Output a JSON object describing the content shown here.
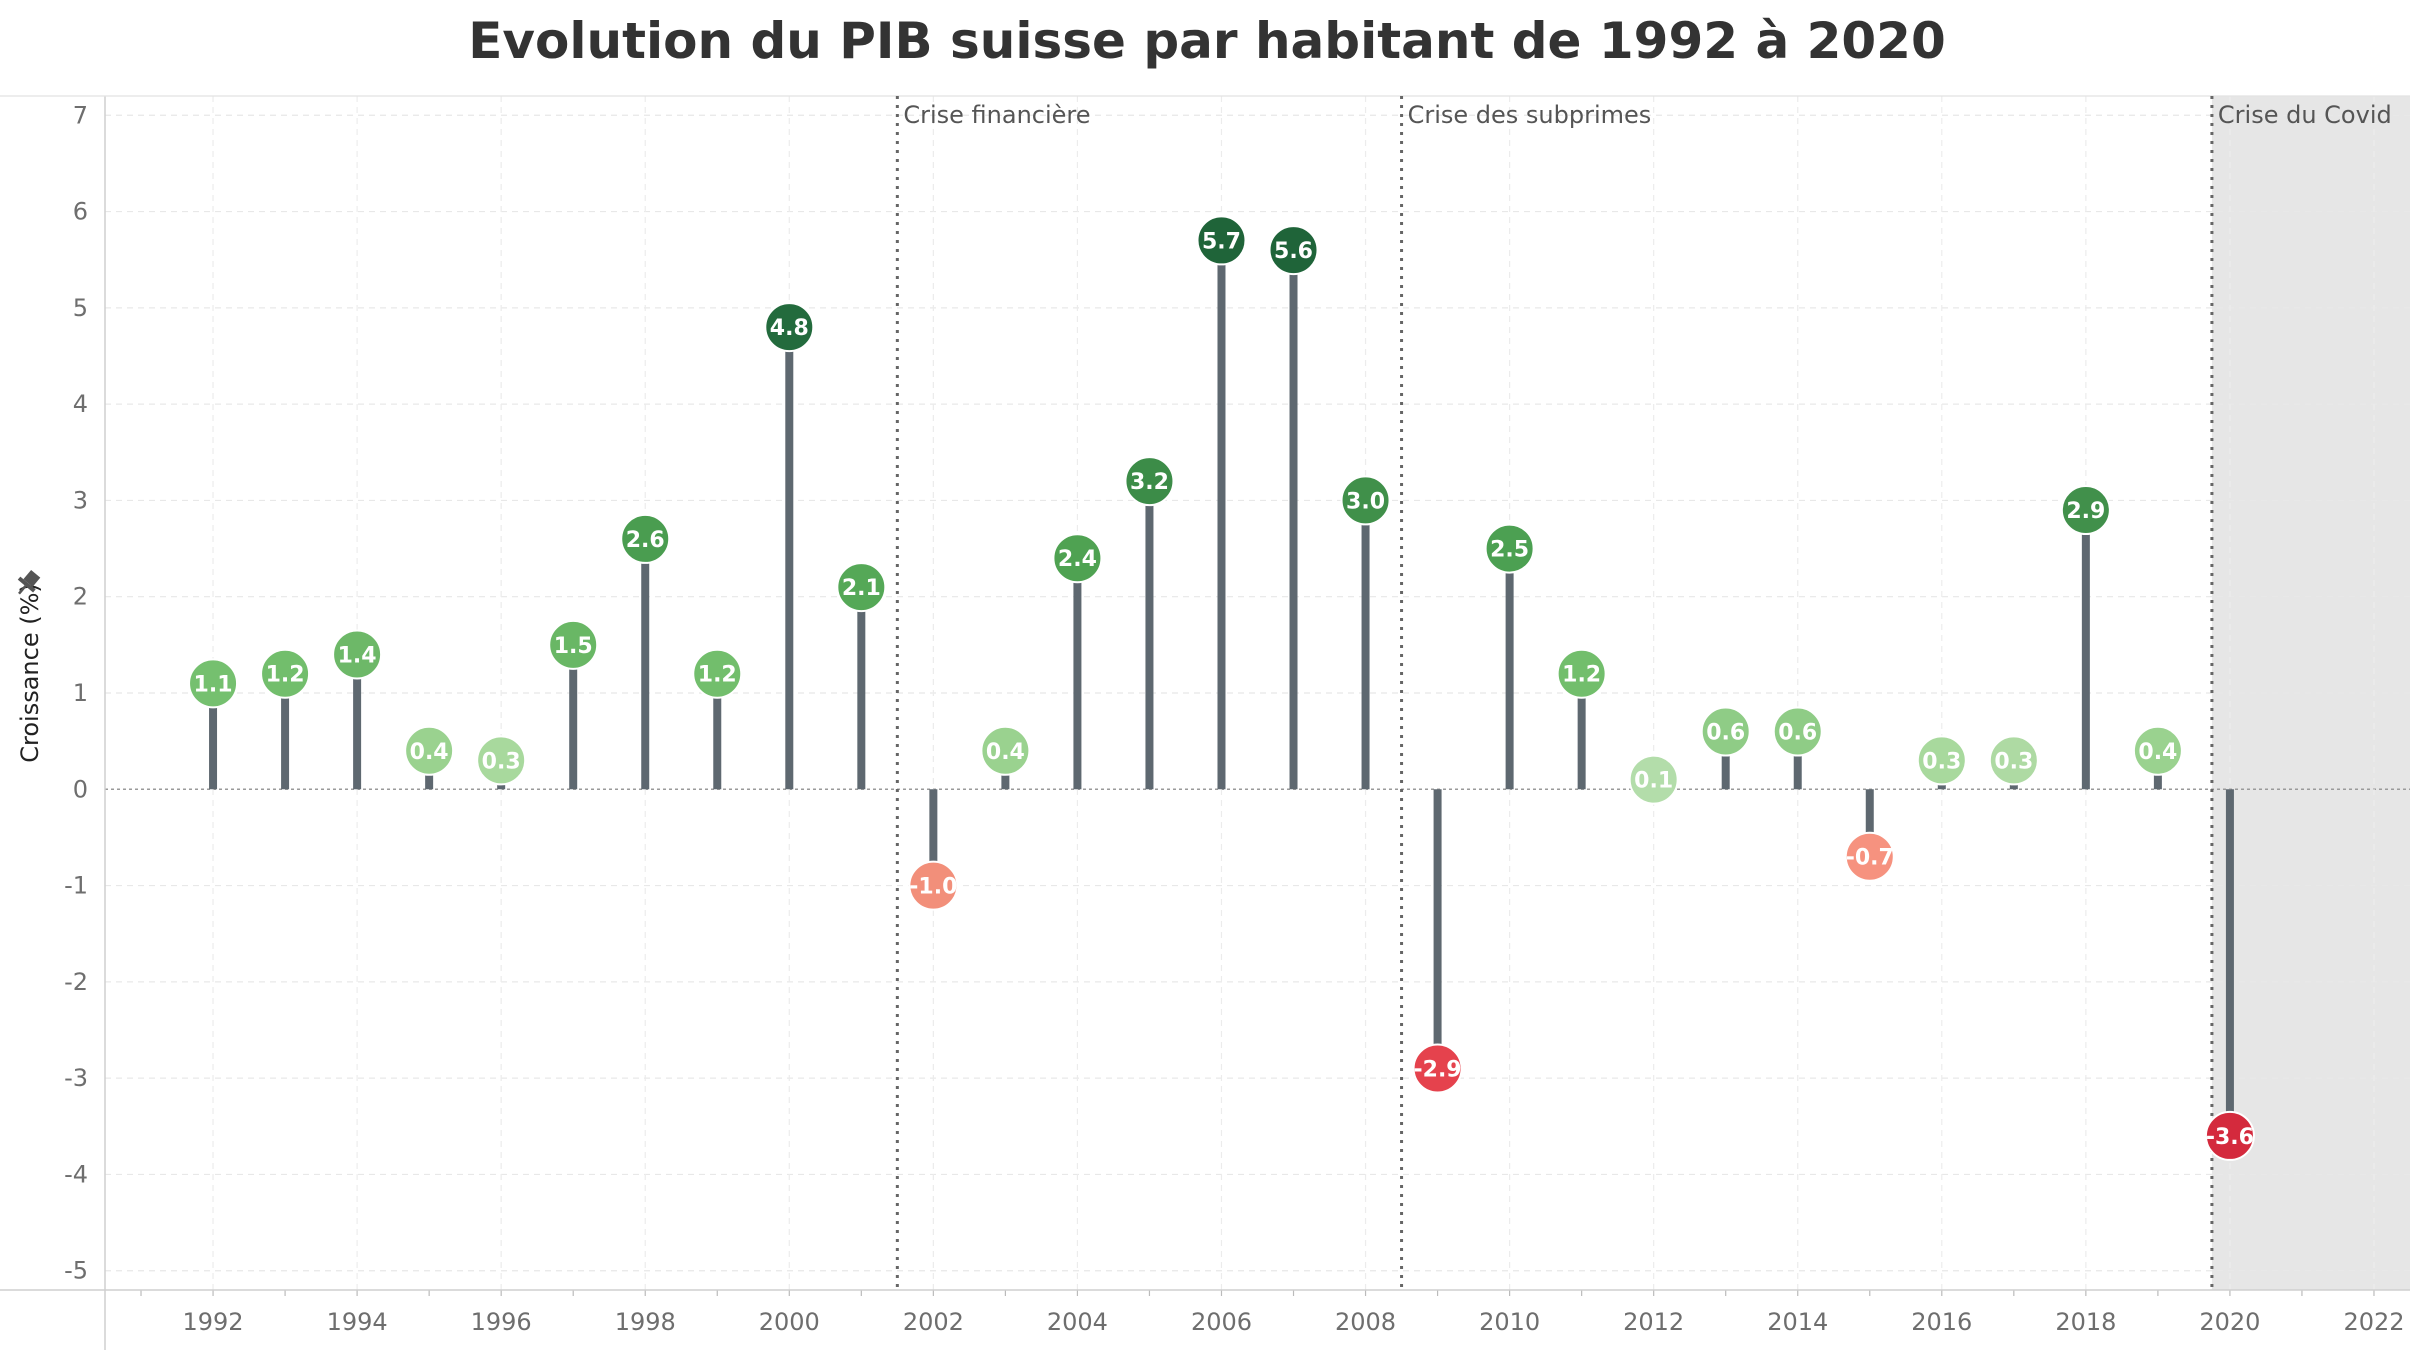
{
  "chart_data": {
    "type": "lollipop",
    "title": "Evolution du PIB suisse par habitant de 1992 à 2020",
    "xlabel": "",
    "ylabel": "Croissance (%)",
    "ylim": [
      -5.2,
      7.2
    ],
    "xlim": [
      1990.5,
      2022.5
    ],
    "y_ticks": [
      "7",
      "6",
      "5",
      "4",
      "3",
      "2",
      "1",
      "0",
      "-1",
      "-2",
      "-3",
      "-4",
      "-5"
    ],
    "x_ticks": [
      "1992",
      "1994",
      "1996",
      "1998",
      "2000",
      "2002",
      "2004",
      "2006",
      "2008",
      "2010",
      "2012",
      "2014",
      "2016",
      "2018",
      "2020",
      "2022"
    ],
    "grid": true,
    "points": [
      {
        "x": 1992,
        "y": 1.1,
        "label": "1.1",
        "color": "#75c06f"
      },
      {
        "x": 1993,
        "y": 1.2,
        "label": "1.2",
        "color": "#72be6c"
      },
      {
        "x": 1994,
        "y": 1.4,
        "label": "1.4",
        "color": "#6db868"
      },
      {
        "x": 1995,
        "y": 0.4,
        "label": "0.4",
        "color": "#9ad28f"
      },
      {
        "x": 1996,
        "y": 0.3,
        "label": "0.3",
        "color": "#a8d99d"
      },
      {
        "x": 1997,
        "y": 1.5,
        "label": "1.5",
        "color": "#69b765"
      },
      {
        "x": 1998,
        "y": 2.6,
        "label": "2.6",
        "color": "#4a9d50"
      },
      {
        "x": 1999,
        "y": 1.2,
        "label": "1.2",
        "color": "#72be6c"
      },
      {
        "x": 2000,
        "y": 4.8,
        "label": "4.8",
        "color": "#236b3d"
      },
      {
        "x": 2001,
        "y": 2.1,
        "label": "2.1",
        "color": "#55a857"
      },
      {
        "x": 2002,
        "y": -1.0,
        "label": "-1.0",
        "color": "#f28f7a"
      },
      {
        "x": 2003,
        "y": 0.4,
        "label": "0.4",
        "color": "#9ad28f"
      },
      {
        "x": 2004,
        "y": 2.4,
        "label": "2.4",
        "color": "#4fa252"
      },
      {
        "x": 2005,
        "y": 3.2,
        "label": "3.2",
        "color": "#3c8c48"
      },
      {
        "x": 2006,
        "y": 5.7,
        "label": "5.7",
        "color": "#1f6439"
      },
      {
        "x": 2007,
        "y": 5.6,
        "label": "5.6",
        "color": "#1f6439"
      },
      {
        "x": 2008,
        "y": 3.0,
        "label": "3.0",
        "color": "#40904a"
      },
      {
        "x": 2009,
        "y": -2.9,
        "label": "-2.9",
        "color": "#e5424d"
      },
      {
        "x": 2010,
        "y": 2.5,
        "label": "2.5",
        "color": "#4ca052"
      },
      {
        "x": 2011,
        "y": 1.2,
        "label": "1.2",
        "color": "#72be6c"
      },
      {
        "x": 2012,
        "y": 0.1,
        "label": "0.1",
        "color": "#b3ddaa"
      },
      {
        "x": 2013,
        "y": 0.6,
        "label": "0.6",
        "color": "#8fcc86"
      },
      {
        "x": 2014,
        "y": 0.6,
        "label": "0.6",
        "color": "#8fcc86"
      },
      {
        "x": 2015,
        "y": -0.7,
        "label": "-0.7",
        "color": "#f6927f"
      },
      {
        "x": 2016,
        "y": 0.3,
        "label": "0.3",
        "color": "#a8d99d"
      },
      {
        "x": 2017,
        "y": 0.3,
        "label": "0.3",
        "color": "#aedaa3"
      },
      {
        "x": 2018,
        "y": 2.9,
        "label": "2.9",
        "color": "#41904b"
      },
      {
        "x": 2019,
        "y": 0.4,
        "label": "0.4",
        "color": "#9ad28f"
      },
      {
        "x": 2020,
        "y": -3.6,
        "label": "-3.6",
        "color": "#d42a3d"
      }
    ],
    "annotations": [
      {
        "x": 2001.5,
        "label": "Crise financière"
      },
      {
        "x": 2008.5,
        "label": "Crise des subprimes"
      },
      {
        "x": 2019.75,
        "label": "Crise du Covid"
      }
    ],
    "shaded_from_x": 2019.75,
    "stem_color": "#5e6870",
    "shade_color": "#e6e6e6"
  }
}
